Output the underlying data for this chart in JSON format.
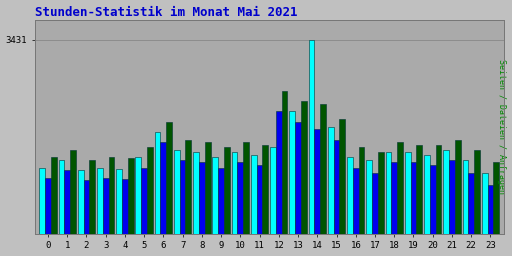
{
  "title": "Stunden-Statistik im Monat Mai 2021",
  "title_color": "#0000cc",
  "ylabel": "Seiten / Dateien / Anfragen",
  "ylabel_color": "#008800",
  "background_color": "#c0c0c0",
  "plot_bg_color": "#aaaaaa",
  "hours": [
    0,
    1,
    2,
    3,
    4,
    5,
    6,
    7,
    8,
    9,
    10,
    11,
    12,
    13,
    14,
    15,
    16,
    17,
    18,
    19,
    20,
    21,
    22,
    23
  ],
  "seiten": [
    3180,
    3195,
    3175,
    3180,
    3178,
    3200,
    3250,
    3215,
    3210,
    3200,
    3210,
    3205,
    3220,
    3290,
    3431,
    3260,
    3200,
    3195,
    3210,
    3210,
    3205,
    3215,
    3195,
    3170
  ],
  "dateien": [
    3160,
    3175,
    3155,
    3160,
    3158,
    3180,
    3230,
    3195,
    3190,
    3180,
    3190,
    3185,
    3290,
    3270,
    3255,
    3235,
    3180,
    3170,
    3190,
    3190,
    3185,
    3195,
    3170,
    3145
  ],
  "anfragen": [
    3200,
    3215,
    3195,
    3200,
    3198,
    3220,
    3270,
    3235,
    3230,
    3220,
    3230,
    3225,
    3330,
    3310,
    3305,
    3275,
    3220,
    3210,
    3230,
    3225,
    3225,
    3235,
    3215,
    3190
  ],
  "color_seiten": "#00ffff",
  "color_dateien": "#0000ee",
  "color_anfragen": "#005500",
  "bar_edge_color": "#003333",
  "ylim_min": 3050,
  "ylim_max": 3470,
  "ytick_val": 3431
}
